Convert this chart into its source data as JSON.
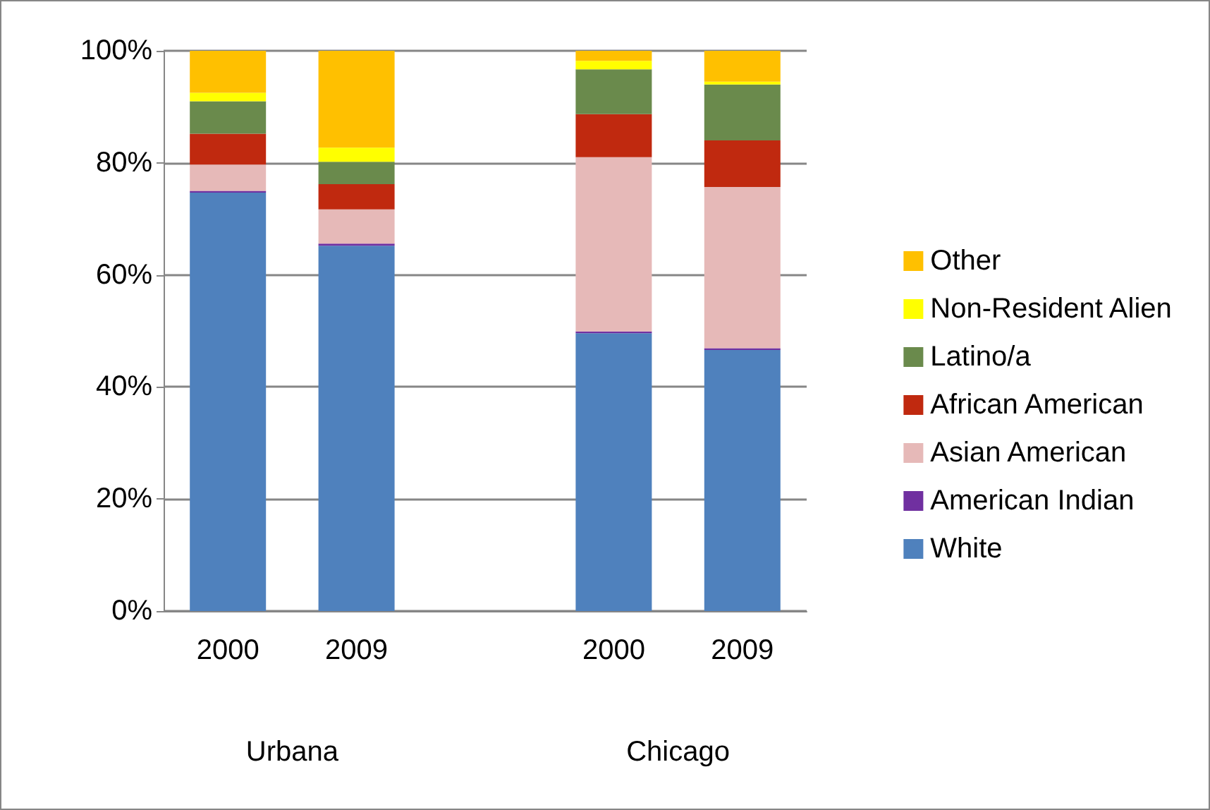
{
  "chart_data": {
    "type": "bar",
    "stacked": true,
    "categories": [
      "2000",
      "2009",
      null,
      "2000",
      "2009"
    ],
    "series": [
      {
        "name": "White",
        "color": "#4f81bd",
        "values": [
          74.7,
          65.2,
          null,
          49.6,
          46.6
        ]
      },
      {
        "name": "American Indian",
        "color": "#7030a0",
        "values": [
          0.3,
          0.4,
          null,
          0.3,
          0.3
        ]
      },
      {
        "name": "Asian American",
        "color": "#e6b9b8",
        "values": [
          4.7,
          6.1,
          null,
          31.1,
          28.8
        ]
      },
      {
        "name": "African American",
        "color": "#c0290f",
        "values": [
          5.5,
          4.5,
          null,
          7.7,
          8.3
        ]
      },
      {
        "name": "Latino/a",
        "color": "#6a8a4c",
        "values": [
          5.8,
          4.0,
          null,
          8.0,
          10.0
        ]
      },
      {
        "name": "Non-Resident Alien",
        "color": "#ffff00",
        "values": [
          1.5,
          2.5,
          null,
          1.5,
          0.5
        ]
      },
      {
        "name": "Other",
        "color": "#ffc000",
        "values": [
          7.5,
          17.3,
          null,
          1.8,
          5.5
        ]
      }
    ],
    "ylim": [
      0,
      100
    ],
    "yticks": [
      {
        "value": 0,
        "label": "0%"
      },
      {
        "value": 20,
        "label": "20%"
      },
      {
        "value": 40,
        "label": "40%"
      },
      {
        "value": 60,
        "label": "60%"
      },
      {
        "value": 80,
        "label": "80%"
      },
      {
        "value": 100,
        "label": "100%"
      }
    ],
    "grid": "y",
    "legend": "right",
    "annotations": [
      "Urbana",
      "Chicago"
    ]
  }
}
